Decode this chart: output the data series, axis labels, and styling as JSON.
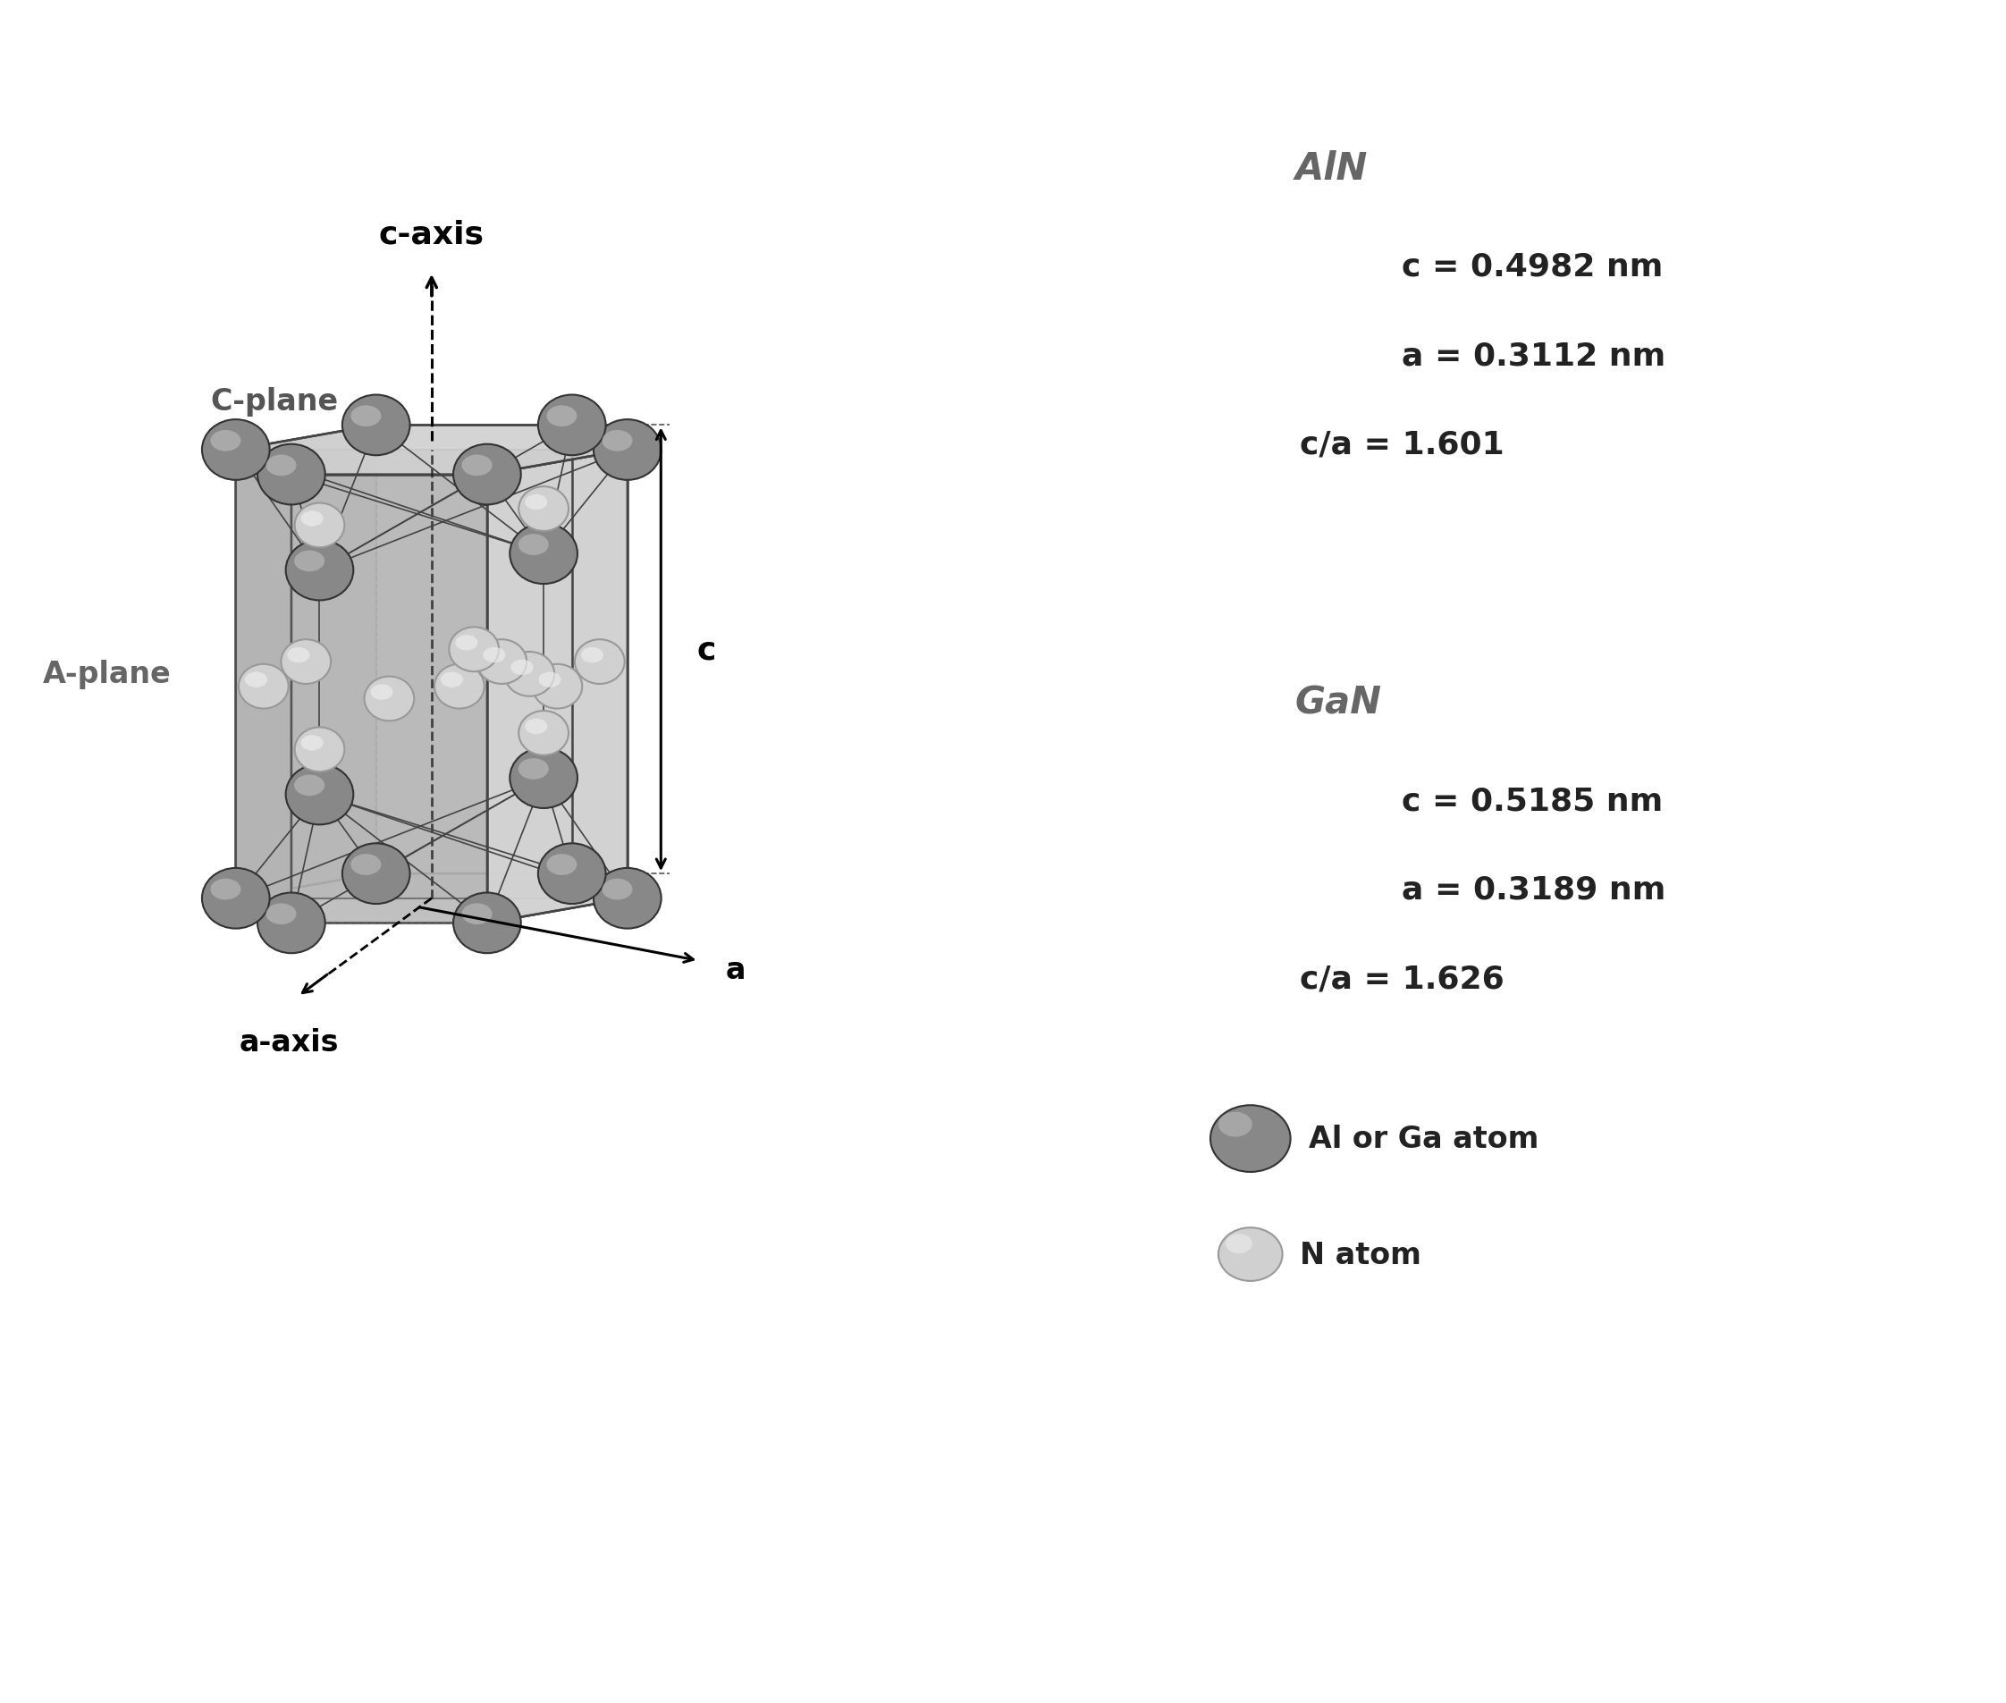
{
  "background_color": "#ffffff",
  "aln_label": "AlN",
  "aln_c": "c = 0.4982 nm",
  "aln_a": "a = 0.3112 nm",
  "aln_ca": "c/a = 1.601",
  "gan_label": "GaN",
  "gan_c": "c = 0.5185 nm",
  "gan_a": "a = 0.3189 nm",
  "gan_ca": "c/a = 1.626",
  "legend_dark": "Al or Ga atom",
  "legend_light": "N atom",
  "c_axis_label": "c-axis",
  "a_axis_label": "a",
  "a_axis2_label": "a-axis",
  "c_plane_label": "C-plane",
  "a_plane_label": "A-plane",
  "c_dim_label": "c",
  "face_top_color": "#c8c8c8",
  "face_left_color": "#b0b0b0",
  "face_right_color": "#a8a8a8",
  "face_bottom_color": "#c0c0c0",
  "edge_color": "#444444",
  "dark_atom_color": "#888888",
  "dark_atom_edge": "#333333",
  "dark_atom_highlight": "#bbbbbb",
  "light_atom_color": "#d0d0d0",
  "light_atom_edge": "#999999",
  "light_atom_highlight": "#eeeeee"
}
